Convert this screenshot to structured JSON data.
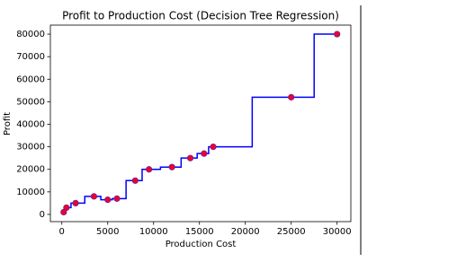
{
  "chart_data": {
    "type": "line",
    "title": "Profit to Production Cost (Decision Tree Regression)",
    "x_label": "Production Cost",
    "y_label": "Profit",
    "xlim": [
      -1250,
      31500
    ],
    "ylim": [
      -3200,
      84000
    ],
    "xticks": [
      0,
      5000,
      10000,
      15000,
      20000,
      25000,
      30000
    ],
    "yticks": [
      0,
      10000,
      20000,
      30000,
      40000,
      50000,
      60000,
      70000,
      80000
    ],
    "grid": false,
    "series": [
      {
        "type": "line",
        "color": "#0000ff",
        "x": [
          0,
          350,
          350,
          1000,
          1000,
          2500,
          2500,
          4250,
          4250,
          5500,
          5500,
          7000,
          7000,
          8750,
          8750,
          10750,
          10750,
          13000,
          13000,
          14750,
          14750,
          16000,
          16000,
          20750,
          20750,
          27500,
          27500,
          30000
        ],
        "values": [
          1000,
          1000,
          3000,
          3000,
          5000,
          5000,
          8000,
          8000,
          6500,
          6500,
          7000,
          7000,
          15000,
          15000,
          20000,
          20000,
          21000,
          21000,
          25000,
          25000,
          27000,
          27000,
          30000,
          30000,
          52000,
          52000,
          80000,
          80000
        ]
      },
      {
        "type": "scatter",
        "color": "#e8003a",
        "x": [
          200,
          500,
          1500,
          3500,
          5000,
          6000,
          8000,
          9500,
          12000,
          14000,
          15500,
          16500,
          25000,
          30000
        ],
        "values": [
          1000,
          3000,
          5000,
          8000,
          6500,
          7000,
          15000,
          20000,
          21000,
          25000,
          27000,
          30000,
          52000,
          80000
        ]
      }
    ]
  }
}
